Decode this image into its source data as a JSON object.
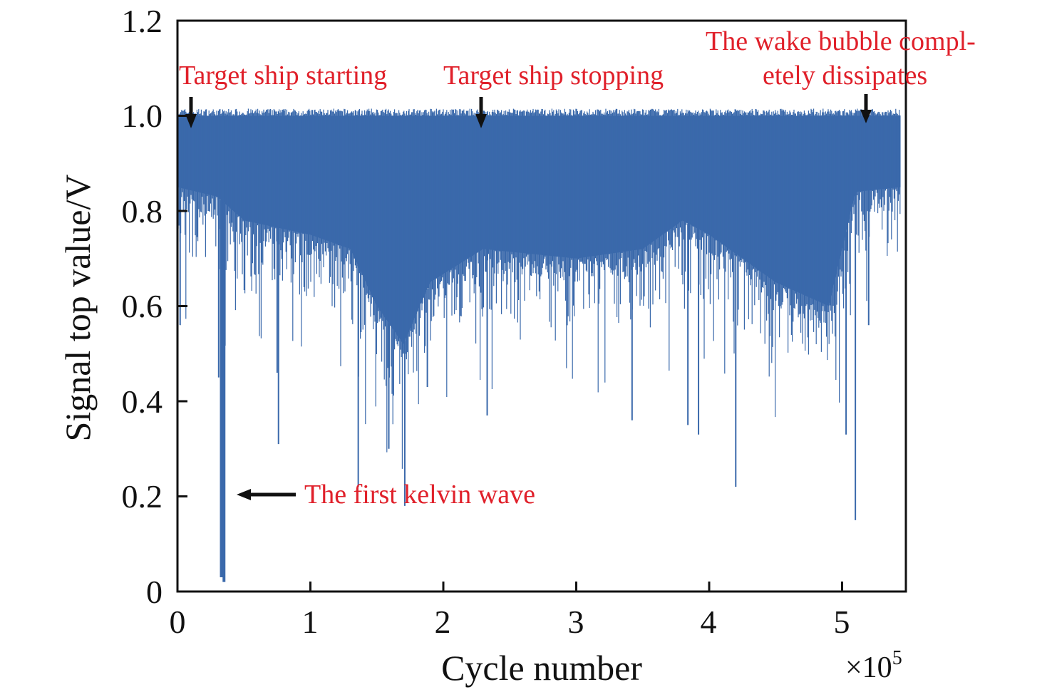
{
  "chart_data": {
    "type": "line",
    "title": "",
    "xlabel": "Cycle number",
    "ylabel": "Signal top value/V",
    "x_multiplier": "×10",
    "x_multiplier_exp": "5",
    "xlim": [
      0,
      5.48
    ],
    "ylim": [
      0,
      1.2
    ],
    "x_ticks": [
      "0",
      "1",
      "2",
      "3",
      "4",
      "5"
    ],
    "y_ticks": [
      "0",
      "0.2",
      "0.4",
      "0.6",
      "0.8",
      "1.0",
      "1.2"
    ],
    "grid": false,
    "series": [
      {
        "name": "Signal top value",
        "color": "#3a69ab",
        "upper_envelope": 1.0,
        "dense_lower_envelope": {
          "x": [
            0,
            0.3,
            0.5,
            1.0,
            1.3,
            1.5,
            1.7,
            1.9,
            2.3,
            3.0,
            3.5,
            3.8,
            4.0,
            4.5,
            4.9,
            5.1,
            5.44
          ],
          "y": [
            0.85,
            0.83,
            0.78,
            0.75,
            0.72,
            0.6,
            0.52,
            0.65,
            0.72,
            0.7,
            0.72,
            0.78,
            0.75,
            0.65,
            0.6,
            0.84,
            0.85
          ]
        },
        "spikes": {
          "x": [
            0.02,
            0.31,
            0.33,
            0.35,
            0.75,
            0.76,
            1.36,
            1.59,
            1.71,
            1.88,
            2.33,
            3.42,
            3.84,
            3.92,
            4.2,
            5.03,
            5.1,
            5.2
          ],
          "y": [
            0.56,
            0.45,
            0.03,
            0.02,
            0.46,
            0.31,
            0.22,
            0.3,
            0.18,
            0.43,
            0.37,
            0.36,
            0.35,
            0.33,
            0.22,
            0.33,
            0.15,
            0.56
          ]
        }
      }
    ],
    "annotations": [
      {
        "text": "Target ship starting",
        "x": 0.1,
        "color": "#e0202a"
      },
      {
        "text": "Target ship stopping",
        "x": 2.29,
        "color": "#e0202a"
      },
      {
        "text": "The wake bubble compl-",
        "text2": "etely dissipates",
        "x": 5.19,
        "color": "#e0202a"
      },
      {
        "text": "The first kelvin wave",
        "x": 0.45,
        "y": 0.2,
        "color": "#e0202a"
      }
    ]
  }
}
